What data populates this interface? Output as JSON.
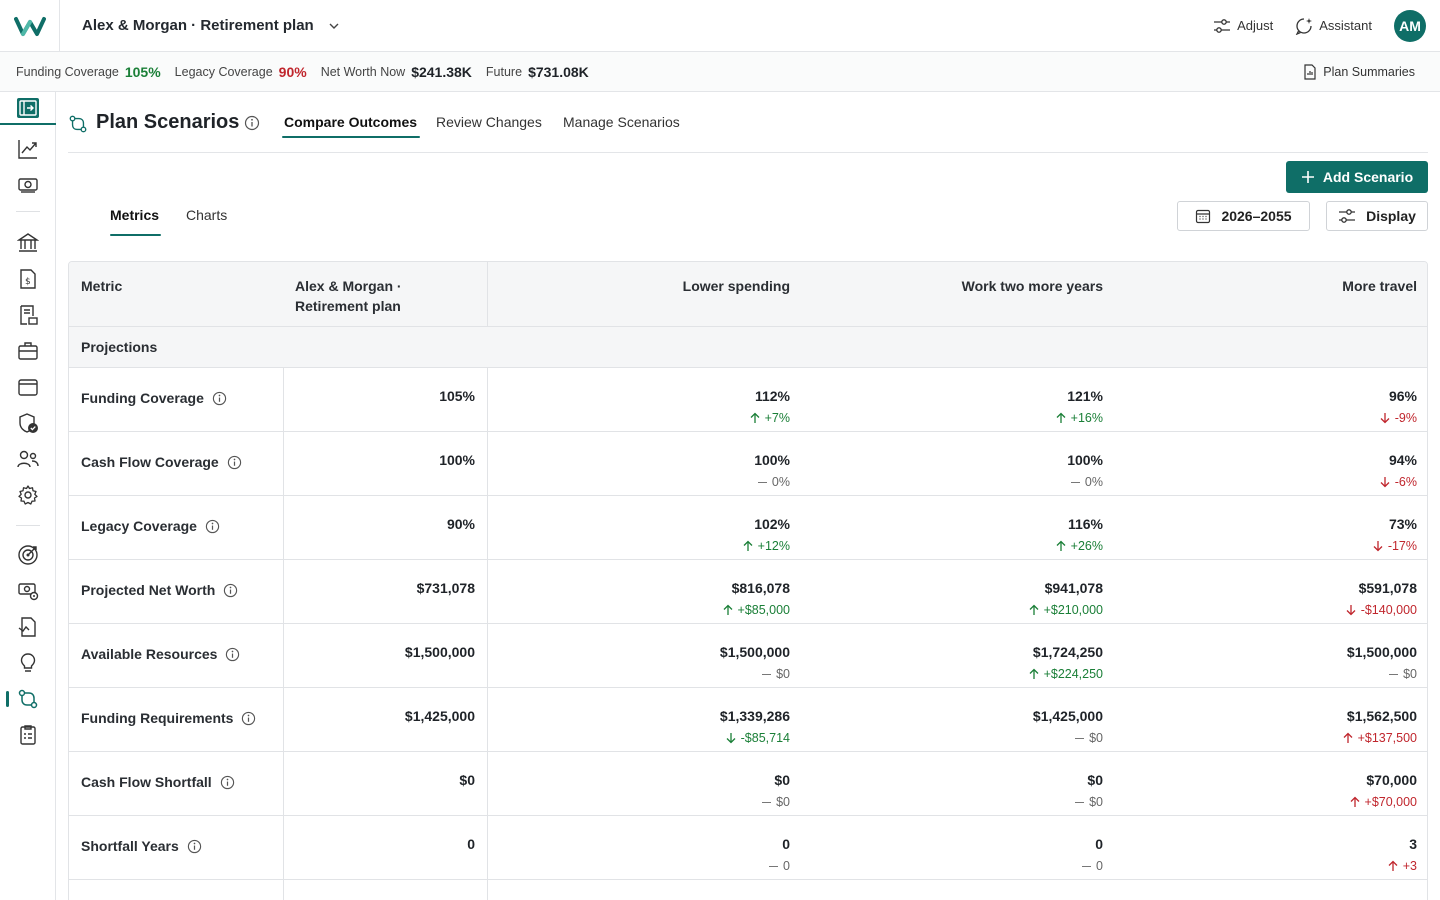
{
  "topbar": {
    "plan_title": "Alex & Morgan · Retirement plan",
    "adjust_label": "Adjust",
    "assistant_label": "Assistant",
    "avatar_initials": "AM"
  },
  "summary": {
    "funding_coverage_label": "Funding Coverage",
    "funding_coverage_value": "105%",
    "legacy_coverage_label": "Legacy Coverage",
    "legacy_coverage_value": "90%",
    "net_worth_label": "Net Worth Now",
    "net_worth_value": "$241.38K",
    "future_label": "Future",
    "future_value": "$731.08K",
    "plan_summaries_label": "Plan Summaries"
  },
  "colors": {
    "accent": "#0f6e67",
    "positive": "#1a7f37",
    "negative": "#c0262d"
  },
  "sidebar": {
    "icons": [
      "collapse-panel-icon",
      "trend-chart-icon",
      "cash-icon",
      "bank-icon",
      "income-icon",
      "ledger-icon",
      "briefcase-icon",
      "wallet-icon",
      "shield-check-icon",
      "people-icon",
      "gear-icon",
      "target-icon",
      "settings-cash-icon",
      "document-icon",
      "lightbulb-icon",
      "scenarios-icon",
      "clipboard-icon"
    ]
  },
  "page": {
    "title": "Plan Scenarios",
    "tabs": [
      {
        "label": "Compare Outcomes",
        "active": true
      },
      {
        "label": "Review Changes",
        "active": false
      },
      {
        "label": "Manage Scenarios",
        "active": false
      }
    ],
    "add_scenario_label": "Add Scenario",
    "subtabs": [
      {
        "label": "Metrics",
        "active": true
      },
      {
        "label": "Charts",
        "active": false
      }
    ],
    "date_range_label": "2026–2055",
    "display_label": "Display"
  },
  "table": {
    "metric_header": "Metric",
    "base_header_line1": "Alex & Morgan ·",
    "base_header_line2": "Retirement plan",
    "scenario_headers": [
      "Lower spending",
      "Work two more years",
      "More travel"
    ],
    "section_label": "Projections",
    "rows": [
      {
        "label": "Funding Coverage",
        "base": "105%",
        "cells": [
          {
            "value": "112%",
            "delta": "+7%",
            "trend": "up"
          },
          {
            "value": "121%",
            "delta": "+16%",
            "trend": "up"
          },
          {
            "value": "96%",
            "delta": "-9%",
            "trend": "down"
          }
        ]
      },
      {
        "label": "Cash Flow Coverage",
        "base": "100%",
        "cells": [
          {
            "value": "100%",
            "delta": "0%",
            "trend": "flat"
          },
          {
            "value": "100%",
            "delta": "0%",
            "trend": "flat"
          },
          {
            "value": "94%",
            "delta": "-6%",
            "trend": "down"
          }
        ]
      },
      {
        "label": "Legacy Coverage",
        "base": "90%",
        "cells": [
          {
            "value": "102%",
            "delta": "+12%",
            "trend": "up"
          },
          {
            "value": "116%",
            "delta": "+26%",
            "trend": "up"
          },
          {
            "value": "73%",
            "delta": "-17%",
            "trend": "down"
          }
        ]
      },
      {
        "label": "Projected Net Worth",
        "base": "$731,078",
        "cells": [
          {
            "value": "$816,078",
            "delta": "+$85,000",
            "trend": "up"
          },
          {
            "value": "$941,078",
            "delta": "+$210,000",
            "trend": "up"
          },
          {
            "value": "$591,078",
            "delta": "-$140,000",
            "trend": "down"
          }
        ]
      },
      {
        "label": "Available Resources",
        "base": "$1,500,000",
        "cells": [
          {
            "value": "$1,500,000",
            "delta": "$0",
            "trend": "flat"
          },
          {
            "value": "$1,724,250",
            "delta": "+$224,250",
            "trend": "up"
          },
          {
            "value": "$1,500,000",
            "delta": "$0",
            "trend": "flat"
          }
        ]
      },
      {
        "label": "Funding Requirements",
        "base": "$1,425,000",
        "cells": [
          {
            "value": "$1,339,286",
            "delta": "-$85,714",
            "trend": "down-good"
          },
          {
            "value": "$1,425,000",
            "delta": "$0",
            "trend": "flat"
          },
          {
            "value": "$1,562,500",
            "delta": "+$137,500",
            "trend": "up-bad"
          }
        ]
      },
      {
        "label": "Cash Flow Shortfall",
        "base": "$0",
        "cells": [
          {
            "value": "$0",
            "delta": "$0",
            "trend": "flat"
          },
          {
            "value": "$0",
            "delta": "$0",
            "trend": "flat"
          },
          {
            "value": "$70,000",
            "delta": "+$70,000",
            "trend": "up-bad"
          }
        ]
      },
      {
        "label": "Shortfall Years",
        "base": "0",
        "cells": [
          {
            "value": "0",
            "delta": "0",
            "trend": "flat"
          },
          {
            "value": "0",
            "delta": "0",
            "trend": "flat"
          },
          {
            "value": "3",
            "delta": "+3",
            "trend": "up-bad"
          }
        ]
      }
    ]
  }
}
